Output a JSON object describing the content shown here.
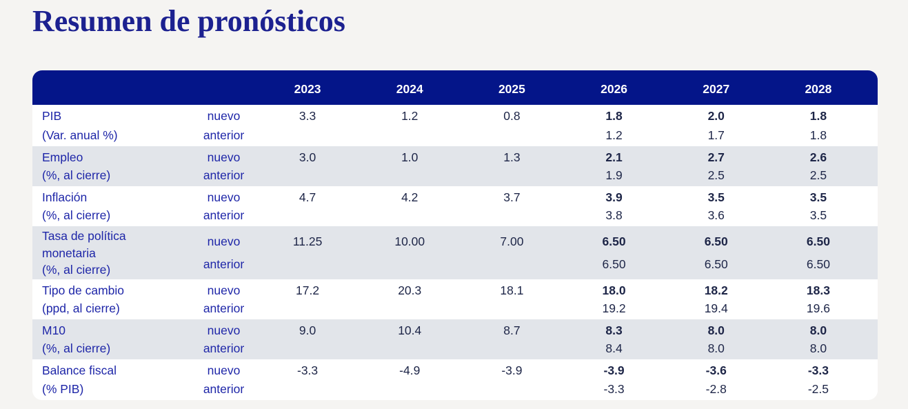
{
  "title": "Resumen de pronósticos",
  "colors": {
    "title_text": "#1c2190",
    "header_bg": "#041589",
    "header_text": "#ffffff",
    "row_stripe_bg": "#e2e5ea",
    "row_white_bg": "#ffffff",
    "label_text": "#1e26a8",
    "value_text": "#1d2547",
    "page_bg": "#f5f4f2"
  },
  "chart_data": {
    "type": "table",
    "title": "Resumen de pronósticos",
    "columns": [
      "2023",
      "2024",
      "2025",
      "2026",
      "2027",
      "2028"
    ],
    "scenario_labels": [
      "nuevo",
      "anterior"
    ],
    "bold_columns": [
      "2026",
      "2027",
      "2028"
    ],
    "layout_hints": {
      "header_style": "navy band, white bold year labels, rounded corners",
      "striping": "alternate rows shaded light gray starting with second indicator",
      "bold_note": "nuevo values for 2026-2028 are bold"
    },
    "rows": [
      {
        "label_lines": [
          "PIB",
          "(Var. anual %)"
        ],
        "nuevo": [
          "3.3",
          "1.2",
          "0.8",
          "1.8",
          "2.0",
          "1.8"
        ],
        "anterior": [
          "",
          "",
          "",
          "1.2",
          "1.7",
          "1.8"
        ]
      },
      {
        "label_lines": [
          "Empleo",
          "(%, al cierre)"
        ],
        "nuevo": [
          "3.0",
          "1.0",
          "1.3",
          "2.1",
          "2.7",
          "2.6"
        ],
        "anterior": [
          "",
          "",
          "",
          "1.9",
          "2.5",
          "2.5"
        ]
      },
      {
        "label_lines": [
          "Inflación",
          "(%, al cierre)"
        ],
        "nuevo": [
          "4.7",
          "4.2",
          "3.7",
          "3.9",
          "3.5",
          "3.5"
        ],
        "anterior": [
          "",
          "",
          "",
          "3.8",
          "3.6",
          "3.5"
        ]
      },
      {
        "label_lines": [
          "Tasa de política",
          "monetaria",
          "(%, al cierre)"
        ],
        "nuevo": [
          "11.25",
          "10.00",
          "7.00",
          "6.50",
          "6.50",
          "6.50"
        ],
        "anterior": [
          "",
          "",
          "",
          "6.50",
          "6.50",
          "6.50"
        ]
      },
      {
        "label_lines": [
          "Tipo de cambio",
          "(ppd, al cierre)"
        ],
        "nuevo": [
          "17.2",
          "20.3",
          "18.1",
          "18.0",
          "18.2",
          "18.3"
        ],
        "anterior": [
          "",
          "",
          "",
          "19.2",
          "19.4",
          "19.6"
        ]
      },
      {
        "label_lines": [
          "M10",
          "(%, al cierre)"
        ],
        "nuevo": [
          "9.0",
          "10.4",
          "8.7",
          "8.3",
          "8.0",
          "8.0"
        ],
        "anterior": [
          "",
          "",
          "",
          "8.4",
          "8.0",
          "8.0"
        ]
      },
      {
        "label_lines": [
          "Balance fiscal",
          "(% PIB)"
        ],
        "nuevo": [
          "-3.3",
          "-4.9",
          "-3.9",
          "-3.9",
          "-3.6",
          "-3.3"
        ],
        "anterior": [
          "",
          "",
          "",
          "-3.3",
          "-2.8",
          "-2.5"
        ]
      }
    ]
  }
}
